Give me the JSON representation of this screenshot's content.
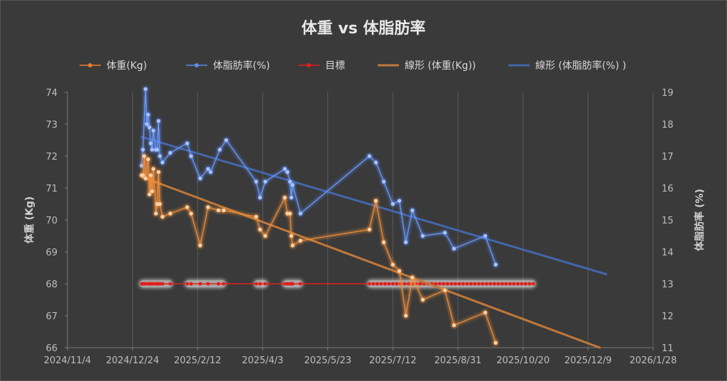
{
  "chart_data": {
    "type": "line",
    "title": "体重 vs 体脂肪率",
    "y_left_label": "体重 (Kg)",
    "y_right_label": "体脂肪率 (%)",
    "y_left_range": [
      66,
      74
    ],
    "y_left_ticks": [
      "66",
      "67",
      "68",
      "69",
      "70",
      "71",
      "72",
      "73",
      "74"
    ],
    "y_right_range": [
      11,
      19
    ],
    "y_right_ticks": [
      "11",
      "12",
      "13",
      "14",
      "15",
      "16",
      "17",
      "18",
      "19"
    ],
    "x_range": [
      "2024-11-04",
      "2026-01-28"
    ],
    "x_ticks": [
      {
        "label": "2024/11/4",
        "date": "2024-11-04"
      },
      {
        "label": "2024/12/24",
        "date": "2024-12-24"
      },
      {
        "label": "2025/2/12",
        "date": "2025-02-12"
      },
      {
        "label": "2025/4/3",
        "date": "2025-04-03"
      },
      {
        "label": "2025/5/23",
        "date": "2025-05-23"
      },
      {
        "label": "2025/7/12",
        "date": "2025-07-12"
      },
      {
        "label": "2025/8/31",
        "date": "2025-08-31"
      },
      {
        "label": "2025/10/20",
        "date": "2025-10-20"
      },
      {
        "label": "2025/12/9",
        "date": "2025-12-09"
      },
      {
        "label": "2026/1/28",
        "date": "2026-01-28"
      }
    ],
    "grid": "vertical",
    "legend_position": "top",
    "legend": [
      {
        "label": "体重(Kg)",
        "type": "line-marker",
        "color": "#ed7d31"
      },
      {
        "label": "体脂肪率(%)",
        "type": "line-marker",
        "color": "#5b8fe3"
      },
      {
        "label": "目標",
        "type": "line-marker",
        "color": "#e0201c"
      },
      {
        "label": "線形 (体重(Kg))",
        "type": "line",
        "color": "#c0783a"
      },
      {
        "label": "線形 (体脂肪率(%) )",
        "type": "line",
        "color": "#4466aa"
      }
    ],
    "series": [
      {
        "name": "体重(Kg)",
        "axis": "left",
        "color": "#ed7d31",
        "points": [
          [
            "2024-12-31",
            71.4
          ],
          [
            "2025-01-01",
            71.4
          ],
          [
            "2025-01-02",
            72.0
          ],
          [
            "2025-01-03",
            71.3
          ],
          [
            "2025-01-05",
            71.9
          ],
          [
            "2025-01-06",
            70.8
          ],
          [
            "2025-01-07",
            71.4
          ],
          [
            "2025-01-08",
            70.9
          ],
          [
            "2025-01-09",
            71.6
          ],
          [
            "2025-01-11",
            70.2
          ],
          [
            "2025-01-12",
            70.5
          ],
          [
            "2025-01-13",
            71.5
          ],
          [
            "2025-01-14",
            70.5
          ],
          [
            "2025-01-16",
            70.1
          ],
          [
            "2025-01-22",
            70.2
          ],
          [
            "2025-02-04",
            70.4
          ],
          [
            "2025-02-07",
            70.2
          ],
          [
            "2025-02-14",
            69.2
          ],
          [
            "2025-02-20",
            70.4
          ],
          [
            "2025-02-28",
            70.3
          ],
          [
            "2025-03-04",
            70.3
          ],
          [
            "2025-03-29",
            70.1
          ],
          [
            "2025-04-01",
            69.7
          ],
          [
            "2025-04-05",
            69.5
          ],
          [
            "2025-04-20",
            70.7
          ],
          [
            "2025-04-22",
            70.2
          ],
          [
            "2025-04-24",
            70.2
          ],
          [
            "2025-04-25",
            69.5
          ],
          [
            "2025-04-26",
            69.2
          ],
          [
            "2025-05-02",
            69.35
          ],
          [
            "2025-06-24",
            69.7
          ],
          [
            "2025-06-29",
            70.6
          ],
          [
            "2025-07-05",
            69.3
          ],
          [
            "2025-07-12",
            68.6
          ],
          [
            "2025-07-17",
            68.4
          ],
          [
            "2025-07-22",
            67.0
          ],
          [
            "2025-07-27",
            68.2
          ],
          [
            "2025-08-04",
            67.5
          ],
          [
            "2025-08-21",
            67.8
          ],
          [
            "2025-08-28",
            66.7
          ],
          [
            "2025-09-21",
            67.1
          ],
          [
            "2025-09-29",
            66.15
          ]
        ]
      },
      {
        "name": "体脂肪率(%)",
        "axis": "right",
        "color": "#5b8fe3",
        "points": [
          [
            "2024-12-31",
            16.7
          ],
          [
            "2025-01-01",
            17.2
          ],
          [
            "2025-01-03",
            19.1
          ],
          [
            "2025-01-04",
            18.0
          ],
          [
            "2025-01-05",
            18.3
          ],
          [
            "2025-01-06",
            17.9
          ],
          [
            "2025-01-07",
            17.4
          ],
          [
            "2025-01-08",
            17.2
          ],
          [
            "2025-01-09",
            17.8
          ],
          [
            "2025-01-11",
            17.2
          ],
          [
            "2025-01-12",
            17.2
          ],
          [
            "2025-01-13",
            18.1
          ],
          [
            "2025-01-14",
            17.0
          ],
          [
            "2025-01-16",
            16.8
          ],
          [
            "2025-01-22",
            17.1
          ],
          [
            "2025-02-04",
            17.4
          ],
          [
            "2025-02-07",
            17.0
          ],
          [
            "2025-02-14",
            16.3
          ],
          [
            "2025-02-20",
            16.6
          ],
          [
            "2025-02-22",
            16.5
          ],
          [
            "2025-03-01",
            17.2
          ],
          [
            "2025-03-06",
            17.5
          ],
          [
            "2025-03-29",
            16.2
          ],
          [
            "2025-04-01",
            15.7
          ],
          [
            "2025-04-05",
            16.2
          ],
          [
            "2025-04-20",
            16.6
          ],
          [
            "2025-04-22",
            16.5
          ],
          [
            "2025-04-24",
            16.2
          ],
          [
            "2025-04-25",
            15.7
          ],
          [
            "2025-04-26",
            16.1
          ],
          [
            "2025-05-02",
            15.2
          ],
          [
            "2025-06-24",
            17.0
          ],
          [
            "2025-06-29",
            16.8
          ],
          [
            "2025-07-05",
            16.2
          ],
          [
            "2025-07-12",
            15.5
          ],
          [
            "2025-07-17",
            15.6
          ],
          [
            "2025-07-22",
            14.3
          ],
          [
            "2025-07-27",
            15.3
          ],
          [
            "2025-08-04",
            14.5
          ],
          [
            "2025-08-21",
            14.6
          ],
          [
            "2025-08-28",
            14.1
          ],
          [
            "2025-09-21",
            14.5
          ],
          [
            "2025-09-29",
            13.6
          ]
        ]
      },
      {
        "name": "目標",
        "axis": "left",
        "color": "#e0201c",
        "value": 68,
        "dates": [
          "2024-12-31",
          "2025-01-01",
          "2025-01-02",
          "2025-01-03",
          "2025-01-05",
          "2025-01-06",
          "2025-01-07",
          "2025-01-08",
          "2025-01-09",
          "2025-01-11",
          "2025-01-12",
          "2025-01-13",
          "2025-01-14",
          "2025-01-16",
          "2025-01-22",
          "2025-02-04",
          "2025-02-07",
          "2025-02-14",
          "2025-02-20",
          "2025-02-28",
          "2025-03-04",
          "2025-03-29",
          "2025-04-01",
          "2025-04-05",
          "2025-04-20",
          "2025-04-22",
          "2025-04-24",
          "2025-04-25",
          "2025-04-26",
          "2025-05-02",
          "2025-06-24",
          "2025-06-27",
          "2025-06-30",
          "2025-07-03",
          "2025-07-06",
          "2025-07-09",
          "2025-07-12",
          "2025-07-15",
          "2025-07-18",
          "2025-07-21",
          "2025-07-24",
          "2025-07-27",
          "2025-07-30",
          "2025-08-02",
          "2025-08-05",
          "2025-08-08",
          "2025-08-11",
          "2025-08-14",
          "2025-08-17",
          "2025-08-20",
          "2025-08-23",
          "2025-08-26",
          "2025-08-29",
          "2025-09-01",
          "2025-09-04",
          "2025-09-07",
          "2025-09-10",
          "2025-09-13",
          "2025-09-16",
          "2025-09-19",
          "2025-09-22",
          "2025-09-25",
          "2025-09-28",
          "2025-10-01",
          "2025-10-04",
          "2025-10-07",
          "2025-10-10",
          "2025-10-13",
          "2025-10-16",
          "2025-10-19",
          "2025-10-22",
          "2025-10-25",
          "2025-10-28"
        ]
      }
    ],
    "trendlines": [
      {
        "name": "線形 (体重(Kg))",
        "axis": "left",
        "color": "#c0783a",
        "from": [
          "2024-12-31",
          71.35
        ],
        "to": [
          "2025-12-18",
          66.0
        ]
      },
      {
        "name": "線形 (体脂肪率(%) )",
        "axis": "right",
        "color": "#4466aa",
        "from": [
          "2024-12-31",
          17.6
        ],
        "to": [
          "2025-12-23",
          13.3
        ]
      }
    ]
  }
}
